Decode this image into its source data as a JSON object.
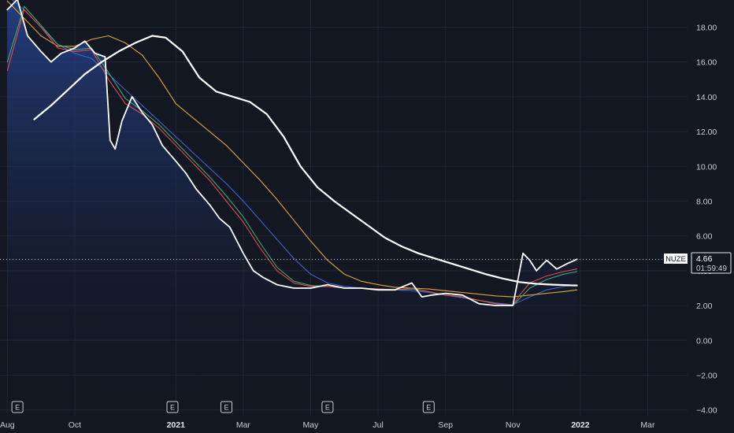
{
  "chart_data": {
    "type": "line",
    "symbol": "NUZE",
    "last_price": "4.66",
    "countdown": "01:59:49",
    "ylim": [
      -4.2,
      19.8
    ],
    "y_ticks": [
      "18.00",
      "16.00",
      "14.00",
      "12.00",
      "10.00",
      "8.00",
      "6.00",
      "4.00",
      "2.00",
      "0.00",
      "−2.00",
      "−4.00"
    ],
    "y_tick_values": [
      18,
      16,
      14,
      12,
      10,
      8,
      6,
      4,
      2,
      0,
      -2,
      -4
    ],
    "x_ticks": [
      {
        "label": "Aug",
        "t": 0.0,
        "bold": false
      },
      {
        "label": "Oct",
        "t": 2.0,
        "bold": false
      },
      {
        "label": "2021",
        "t": 5.0,
        "bold": true
      },
      {
        "label": "Mar",
        "t": 7.0,
        "bold": false
      },
      {
        "label": "May",
        "t": 9.0,
        "bold": false
      },
      {
        "label": "Jul",
        "t": 11.0,
        "bold": false
      },
      {
        "label": "Sep",
        "t": 13.0,
        "bold": false
      },
      {
        "label": "Nov",
        "t": 15.0,
        "bold": false
      },
      {
        "label": "2022",
        "t": 17.0,
        "bold": true
      },
      {
        "label": "Mar",
        "t": 19.0,
        "bold": false
      }
    ],
    "xlim": [
      -0.1,
      20.2
    ],
    "earnings_markers": [
      {
        "label": "E",
        "t": 0.3
      },
      {
        "label": "E",
        "t": 4.9
      },
      {
        "label": "E",
        "t": 6.5
      },
      {
        "label": "E",
        "t": 9.5
      },
      {
        "label": "E",
        "t": 12.5
      }
    ],
    "series": [
      {
        "name": "price",
        "color": "#ffffff",
        "width": 1.8,
        "x": [
          0.0,
          0.3,
          0.6,
          1.0,
          1.3,
          1.6,
          2.0,
          2.3,
          2.6,
          2.9,
          3.05,
          3.2,
          3.4,
          3.7,
          4.0,
          4.3,
          4.6,
          5.0,
          5.3,
          5.6,
          6.0,
          6.3,
          6.6,
          7.0,
          7.3,
          7.6,
          8.0,
          8.5,
          9.0,
          9.5,
          10.0,
          10.5,
          11.0,
          11.5,
          12.0,
          12.3,
          12.6,
          13.0,
          13.5,
          14.0,
          14.5,
          15.0,
          15.3,
          15.5,
          15.7,
          16.0,
          16.3,
          16.6,
          16.9
        ],
        "y": [
          19.0,
          19.6,
          17.5,
          16.6,
          16.0,
          16.5,
          16.8,
          17.2,
          16.5,
          16.3,
          11.5,
          11.0,
          12.6,
          14.0,
          13.1,
          12.4,
          11.2,
          10.3,
          9.6,
          8.7,
          7.8,
          7.0,
          6.5,
          5.0,
          4.0,
          3.6,
          3.2,
          3.0,
          3.0,
          3.2,
          3.0,
          3.0,
          2.9,
          2.9,
          3.3,
          2.5,
          2.6,
          2.7,
          2.6,
          2.1,
          2.0,
          2.0,
          5.0,
          4.6,
          4.0,
          4.6,
          4.1,
          4.4,
          4.66
        ]
      },
      {
        "name": "ma-fast-red",
        "color": "#e04a4f",
        "width": 1.1,
        "x": [
          0.0,
          0.5,
          1.0,
          1.5,
          2.0,
          2.5,
          3.0,
          3.5,
          4.0,
          4.5,
          5.0,
          5.5,
          6.0,
          6.5,
          7.0,
          7.5,
          8.0,
          8.5,
          9.0,
          9.5,
          10.0,
          10.5,
          11.0,
          11.5,
          12.0,
          12.5,
          13.0,
          13.5,
          14.0,
          14.5,
          15.0,
          15.2,
          15.5,
          16.0,
          16.5,
          16.9
        ],
        "y": [
          15.5,
          19.0,
          18.0,
          16.8,
          16.6,
          16.7,
          15.0,
          13.6,
          13.0,
          12.2,
          11.2,
          10.2,
          9.2,
          8.0,
          6.8,
          5.3,
          4.0,
          3.3,
          3.1,
          3.1,
          3.0,
          3.0,
          2.95,
          2.9,
          3.0,
          2.8,
          2.6,
          2.5,
          2.3,
          2.1,
          2.0,
          2.6,
          3.3,
          3.7,
          3.95,
          4.1
        ]
      },
      {
        "name": "ma-fast-green",
        "color": "#3ea673",
        "width": 1.1,
        "x": [
          0.0,
          0.5,
          1.0,
          1.5,
          2.0,
          2.5,
          3.0,
          3.5,
          4.0,
          4.5,
          5.0,
          5.5,
          6.0,
          6.5,
          7.0,
          7.5,
          8.0,
          8.5,
          9.0,
          9.5,
          10.0,
          10.5,
          11.0,
          11.5,
          12.0,
          12.5,
          13.0,
          13.5,
          14.0,
          14.5,
          15.0,
          15.2,
          15.5,
          16.0,
          16.5,
          16.9
        ],
        "y": [
          16.0,
          19.2,
          18.1,
          17.0,
          16.7,
          16.8,
          15.4,
          13.9,
          13.2,
          12.4,
          11.4,
          10.4,
          9.4,
          8.3,
          7.1,
          5.6,
          4.2,
          3.4,
          3.15,
          3.1,
          3.0,
          3.0,
          2.95,
          2.9,
          2.95,
          2.8,
          2.6,
          2.5,
          2.3,
          2.1,
          2.0,
          2.4,
          3.0,
          3.5,
          3.8,
          3.95
        ]
      },
      {
        "name": "ma-mid-blue",
        "color": "#3b63c9",
        "width": 1.1,
        "x": [
          0.0,
          0.5,
          1.0,
          1.5,
          2.0,
          2.5,
          3.0,
          3.5,
          4.0,
          4.5,
          5.0,
          5.5,
          6.0,
          6.5,
          7.0,
          7.5,
          8.0,
          8.5,
          9.0,
          9.5,
          10.0,
          10.5,
          11.0,
          11.5,
          12.0,
          12.5,
          13.0,
          13.5,
          14.0,
          14.5,
          15.0,
          15.5,
          16.0,
          16.5,
          16.9
        ],
        "y": [
          19.8,
          19.0,
          18.0,
          17.0,
          16.5,
          16.2,
          15.3,
          14.4,
          13.5,
          12.6,
          11.7,
          10.8,
          9.9,
          9.0,
          8.0,
          6.9,
          5.8,
          4.7,
          3.8,
          3.3,
          3.1,
          3.0,
          2.95,
          2.9,
          2.85,
          2.75,
          2.6,
          2.45,
          2.3,
          2.15,
          2.05,
          2.5,
          2.9,
          3.1,
          3.2
        ]
      },
      {
        "name": "ma-slow-orange",
        "color": "#e0a43a",
        "width": 1.1,
        "x": [
          0.0,
          0.5,
          1.0,
          1.5,
          2.0,
          2.5,
          3.0,
          3.5,
          4.0,
          4.5,
          5.0,
          5.5,
          6.0,
          6.5,
          7.0,
          7.5,
          8.0,
          8.5,
          9.0,
          9.5,
          10.0,
          10.5,
          11.0,
          11.5,
          12.0,
          12.5,
          13.0,
          13.5,
          14.0,
          14.5,
          15.0,
          15.5,
          16.0,
          16.5,
          16.9
        ],
        "y": [
          19.5,
          18.5,
          17.5,
          16.9,
          16.9,
          17.3,
          17.5,
          17.1,
          16.4,
          15.1,
          13.6,
          12.8,
          12.0,
          11.2,
          10.2,
          9.2,
          8.1,
          6.9,
          5.7,
          4.6,
          3.8,
          3.4,
          3.2,
          3.05,
          3.0,
          2.95,
          2.85,
          2.75,
          2.65,
          2.55,
          2.5,
          2.6,
          2.7,
          2.8,
          2.9
        ]
      },
      {
        "name": "ma-long-white",
        "color": "#ffffff",
        "width": 2.2,
        "x": [
          0.8,
          1.3,
          1.8,
          2.3,
          2.8,
          3.3,
          3.8,
          4.3,
          4.7,
          5.2,
          5.7,
          6.2,
          6.7,
          7.2,
          7.7,
          8.2,
          8.7,
          9.2,
          9.7,
          10.2,
          10.7,
          11.2,
          11.7,
          12.2,
          12.7,
          13.2,
          13.7,
          14.2,
          14.7,
          15.2,
          15.7,
          16.2,
          16.9
        ],
        "y": [
          12.7,
          13.5,
          14.4,
          15.3,
          16.0,
          16.6,
          17.1,
          17.5,
          17.4,
          16.6,
          15.1,
          14.3,
          14.0,
          13.7,
          13.0,
          11.7,
          10.0,
          8.8,
          8.0,
          7.3,
          6.6,
          5.9,
          5.4,
          5.0,
          4.7,
          4.4,
          4.1,
          3.8,
          3.55,
          3.35,
          3.25,
          3.2,
          3.15
        ]
      }
    ]
  }
}
